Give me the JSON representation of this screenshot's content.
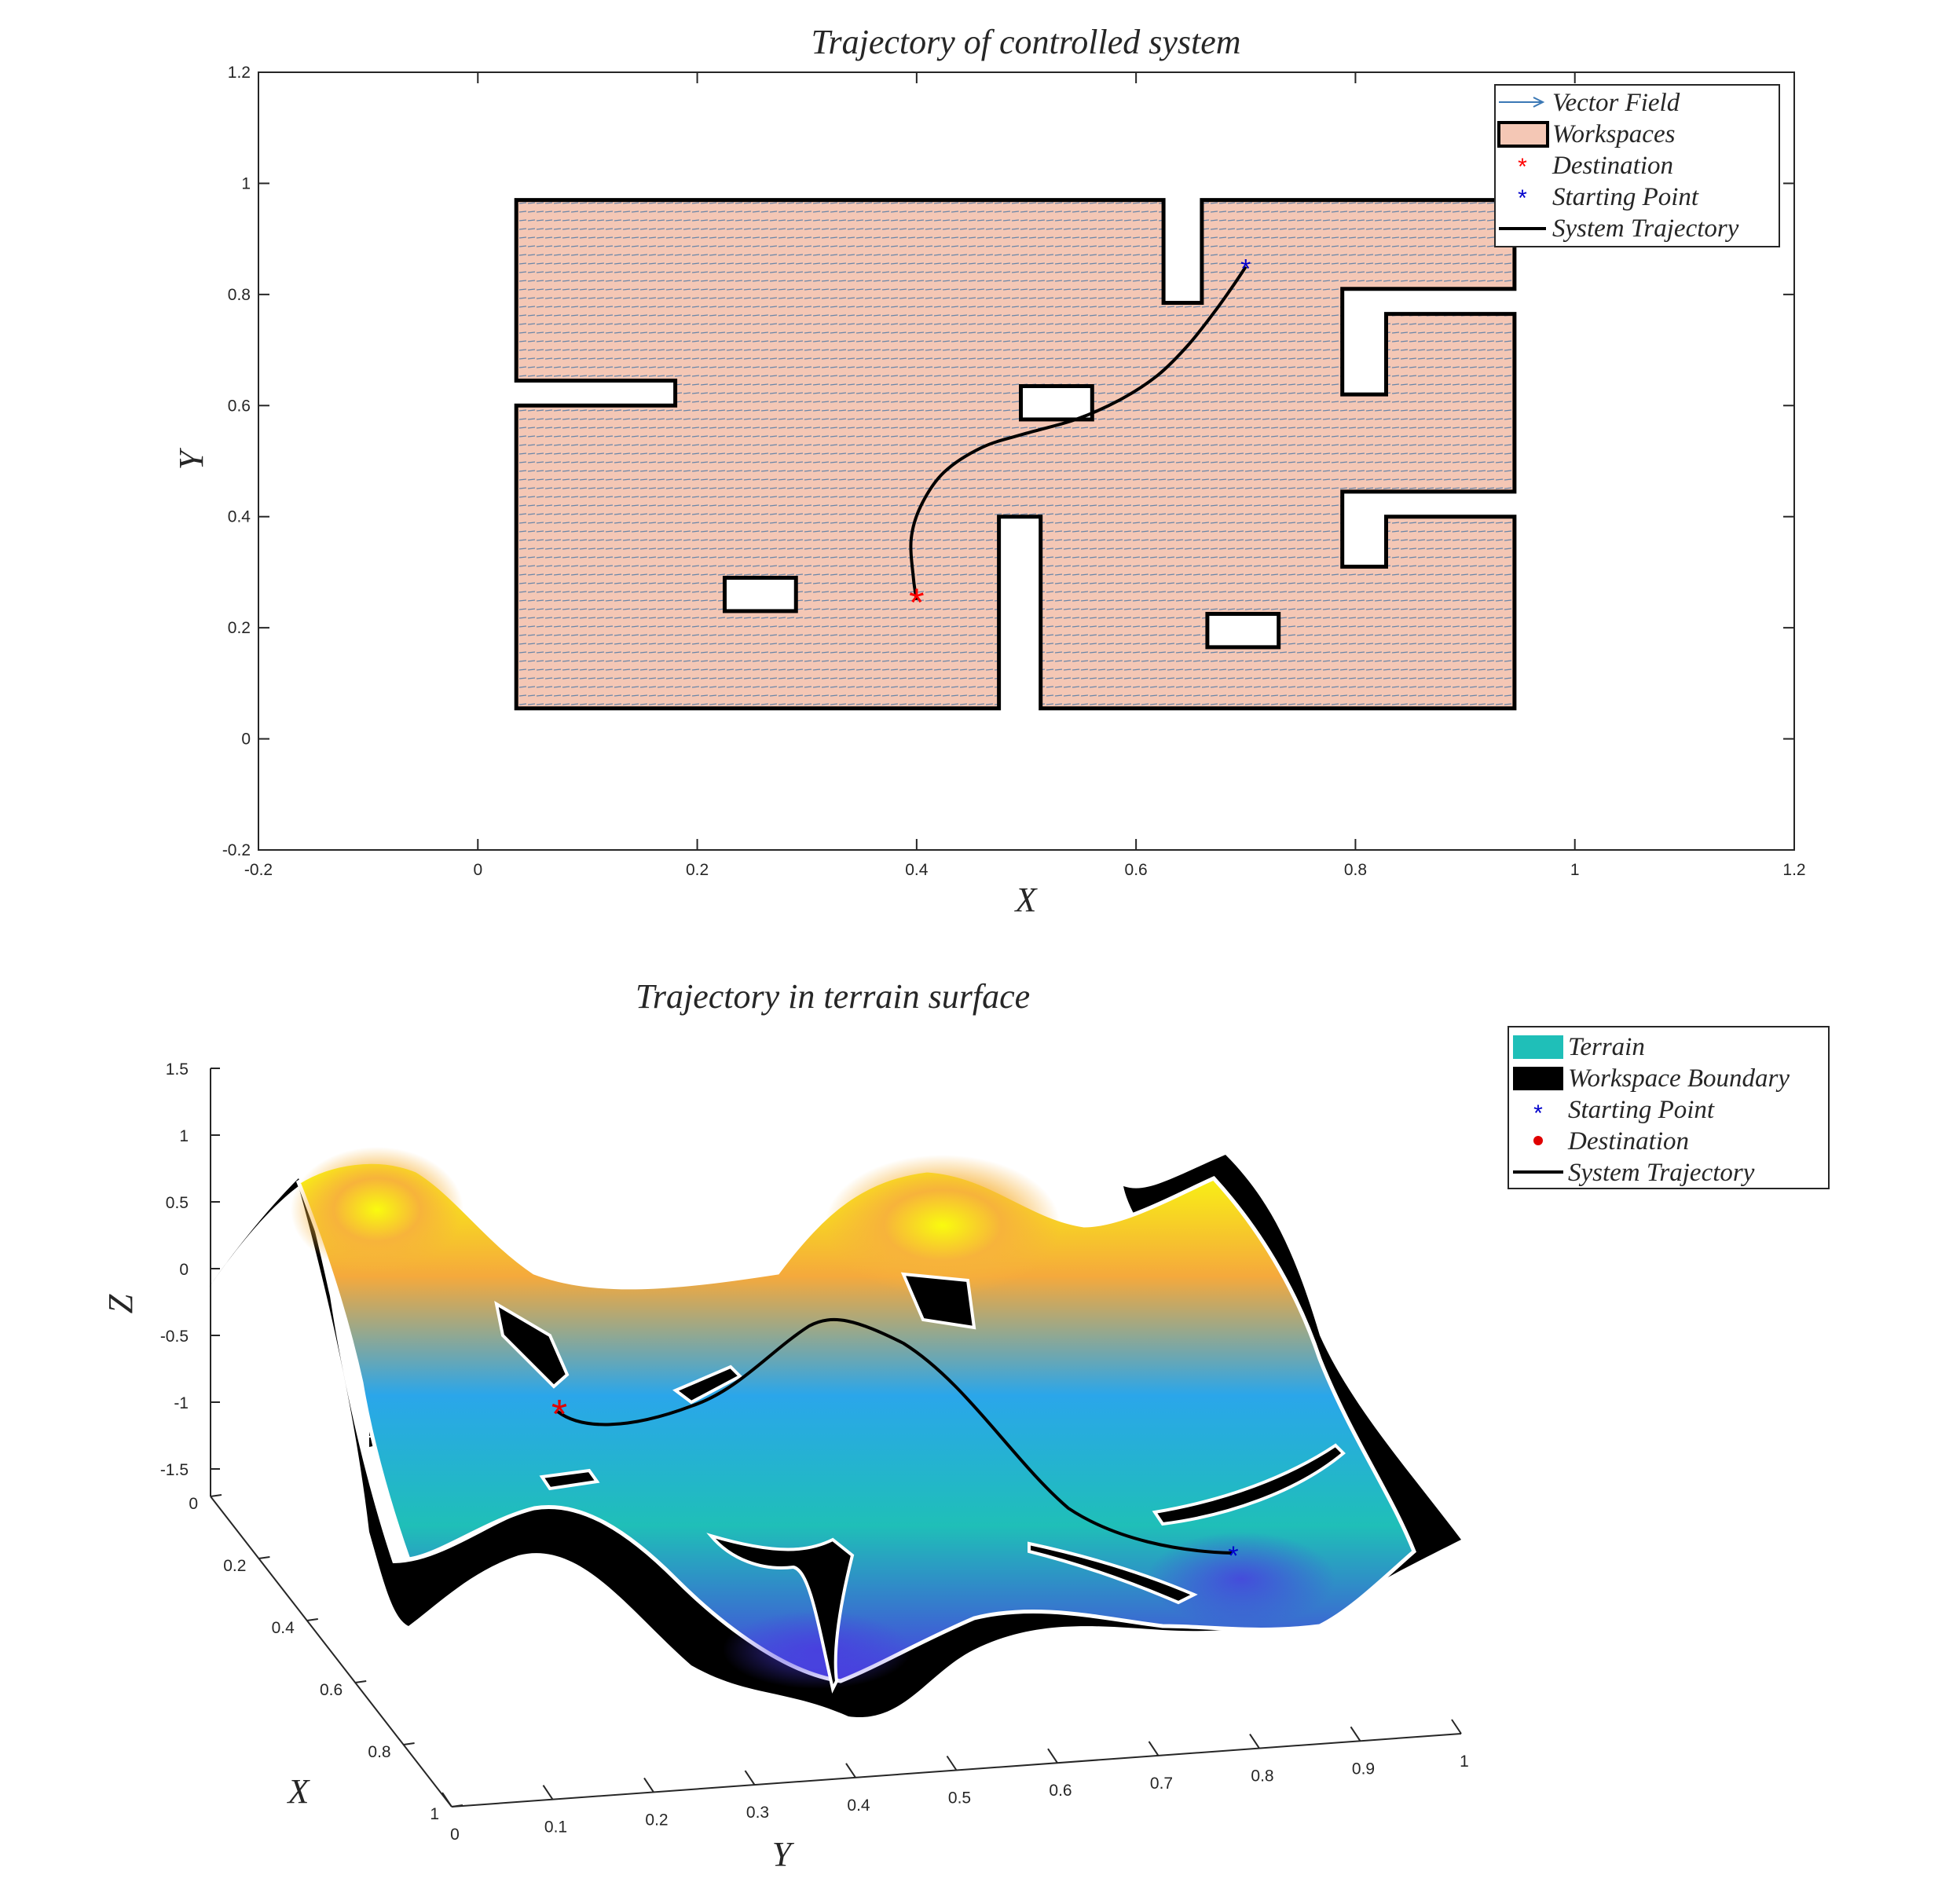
{
  "chart_data": [
    {
      "type": "line",
      "title": "Trajectory of controlled system",
      "xlabel": "X",
      "ylabel": "Y",
      "xlim": [
        -0.2,
        1.2
      ],
      "ylim": [
        -0.2,
        1.2
      ],
      "xticks": [
        "-0.2",
        "0",
        "0.2",
        "0.4",
        "0.6",
        "0.8",
        "1",
        "1.2"
      ],
      "yticks": [
        "-0.2",
        "0",
        "0.2",
        "0.4",
        "0.6",
        "0.8",
        "1",
        "1.2"
      ],
      "legend_position": "top-right",
      "legend": [
        "Vector Field",
        "Workspaces",
        "Destination",
        "Starting Point",
        "System Trajectory"
      ],
      "colors": {
        "workspace": "#f4c7b5",
        "vector": "#5b7fa6",
        "destination": "#ff0000",
        "start": "#0000cc",
        "trajectory": "#000000"
      },
      "workspace_outline": [
        [
          0.035,
          0.055
        ],
        [
          0.475,
          0.055
        ],
        [
          0.475,
          0.4
        ],
        [
          0.513,
          0.4
        ],
        [
          0.513,
          0.055
        ],
        [
          0.945,
          0.055
        ],
        [
          0.945,
          0.4
        ],
        [
          0.828,
          0.4
        ],
        [
          0.828,
          0.31
        ],
        [
          0.788,
          0.31
        ],
        [
          0.788,
          0.445
        ],
        [
          0.945,
          0.445
        ],
        [
          0.945,
          0.765
        ],
        [
          0.828,
          0.765
        ],
        [
          0.828,
          0.62
        ],
        [
          0.788,
          0.62
        ],
        [
          0.788,
          0.81
        ],
        [
          0.945,
          0.81
        ],
        [
          0.945,
          0.97
        ],
        [
          0.66,
          0.97
        ],
        [
          0.66,
          0.785
        ],
        [
          0.625,
          0.785
        ],
        [
          0.625,
          0.97
        ],
        [
          0.035,
          0.97
        ],
        [
          0.035,
          0.645
        ],
        [
          0.18,
          0.645
        ],
        [
          0.18,
          0.6
        ],
        [
          0.035,
          0.6
        ]
      ],
      "obstacles": [
        {
          "x": [
            0.225,
            0.29
          ],
          "y": [
            0.23,
            0.29
          ]
        },
        {
          "x": [
            0.495,
            0.56
          ],
          "y": [
            0.575,
            0.635
          ]
        },
        {
          "x": [
            0.665,
            0.73
          ],
          "y": [
            0.165,
            0.225
          ]
        }
      ],
      "series": [
        {
          "name": "System Trajectory",
          "x": [
            0.7,
            0.69,
            0.672,
            0.648,
            0.62,
            0.585,
            0.545,
            0.5,
            0.46,
            0.425,
            0.404,
            0.395,
            0.397,
            0.4
          ],
          "y": [
            0.85,
            0.82,
            0.77,
            0.71,
            0.655,
            0.61,
            0.575,
            0.55,
            0.525,
            0.48,
            0.42,
            0.36,
            0.29,
            0.25
          ]
        },
        {
          "name": "Destination",
          "x": [
            0.4
          ],
          "y": [
            0.25
          ]
        },
        {
          "name": "Starting Point",
          "x": [
            0.7
          ],
          "y": [
            0.85
          ]
        }
      ]
    },
    {
      "type": "surface",
      "title": "Trajectory in terrain surface",
      "xlabel": "X",
      "ylabel": "Y",
      "zlabel": "Z",
      "xlim": [
        0,
        1
      ],
      "ylim": [
        0,
        1
      ],
      "zlim": [
        -1.5,
        1.5
      ],
      "xticks": [
        "0",
        "0.2",
        "0.4",
        "0.6",
        "0.8",
        "1"
      ],
      "yticks": [
        "0",
        "0.1",
        "0.2",
        "0.3",
        "0.4",
        "0.5",
        "0.6",
        "0.7",
        "0.8",
        "0.9",
        "1"
      ],
      "zticks": [
        "1.5",
        "1",
        "0.5",
        "0",
        "-0.5",
        "-1",
        "-1.5"
      ],
      "legend_position": "top-right",
      "legend": [
        "Terrain",
        "Workspace Boundary",
        "Starting Point",
        "Destination",
        "System Trajectory"
      ],
      "colors": {
        "terrain_high": "#f9fb0e",
        "terrain_mid": "#1fbfb8",
        "terrain_low": "#4a3be0",
        "boundary": "#000000",
        "start": "#0000cc",
        "destination": "#e00000"
      }
    }
  ]
}
